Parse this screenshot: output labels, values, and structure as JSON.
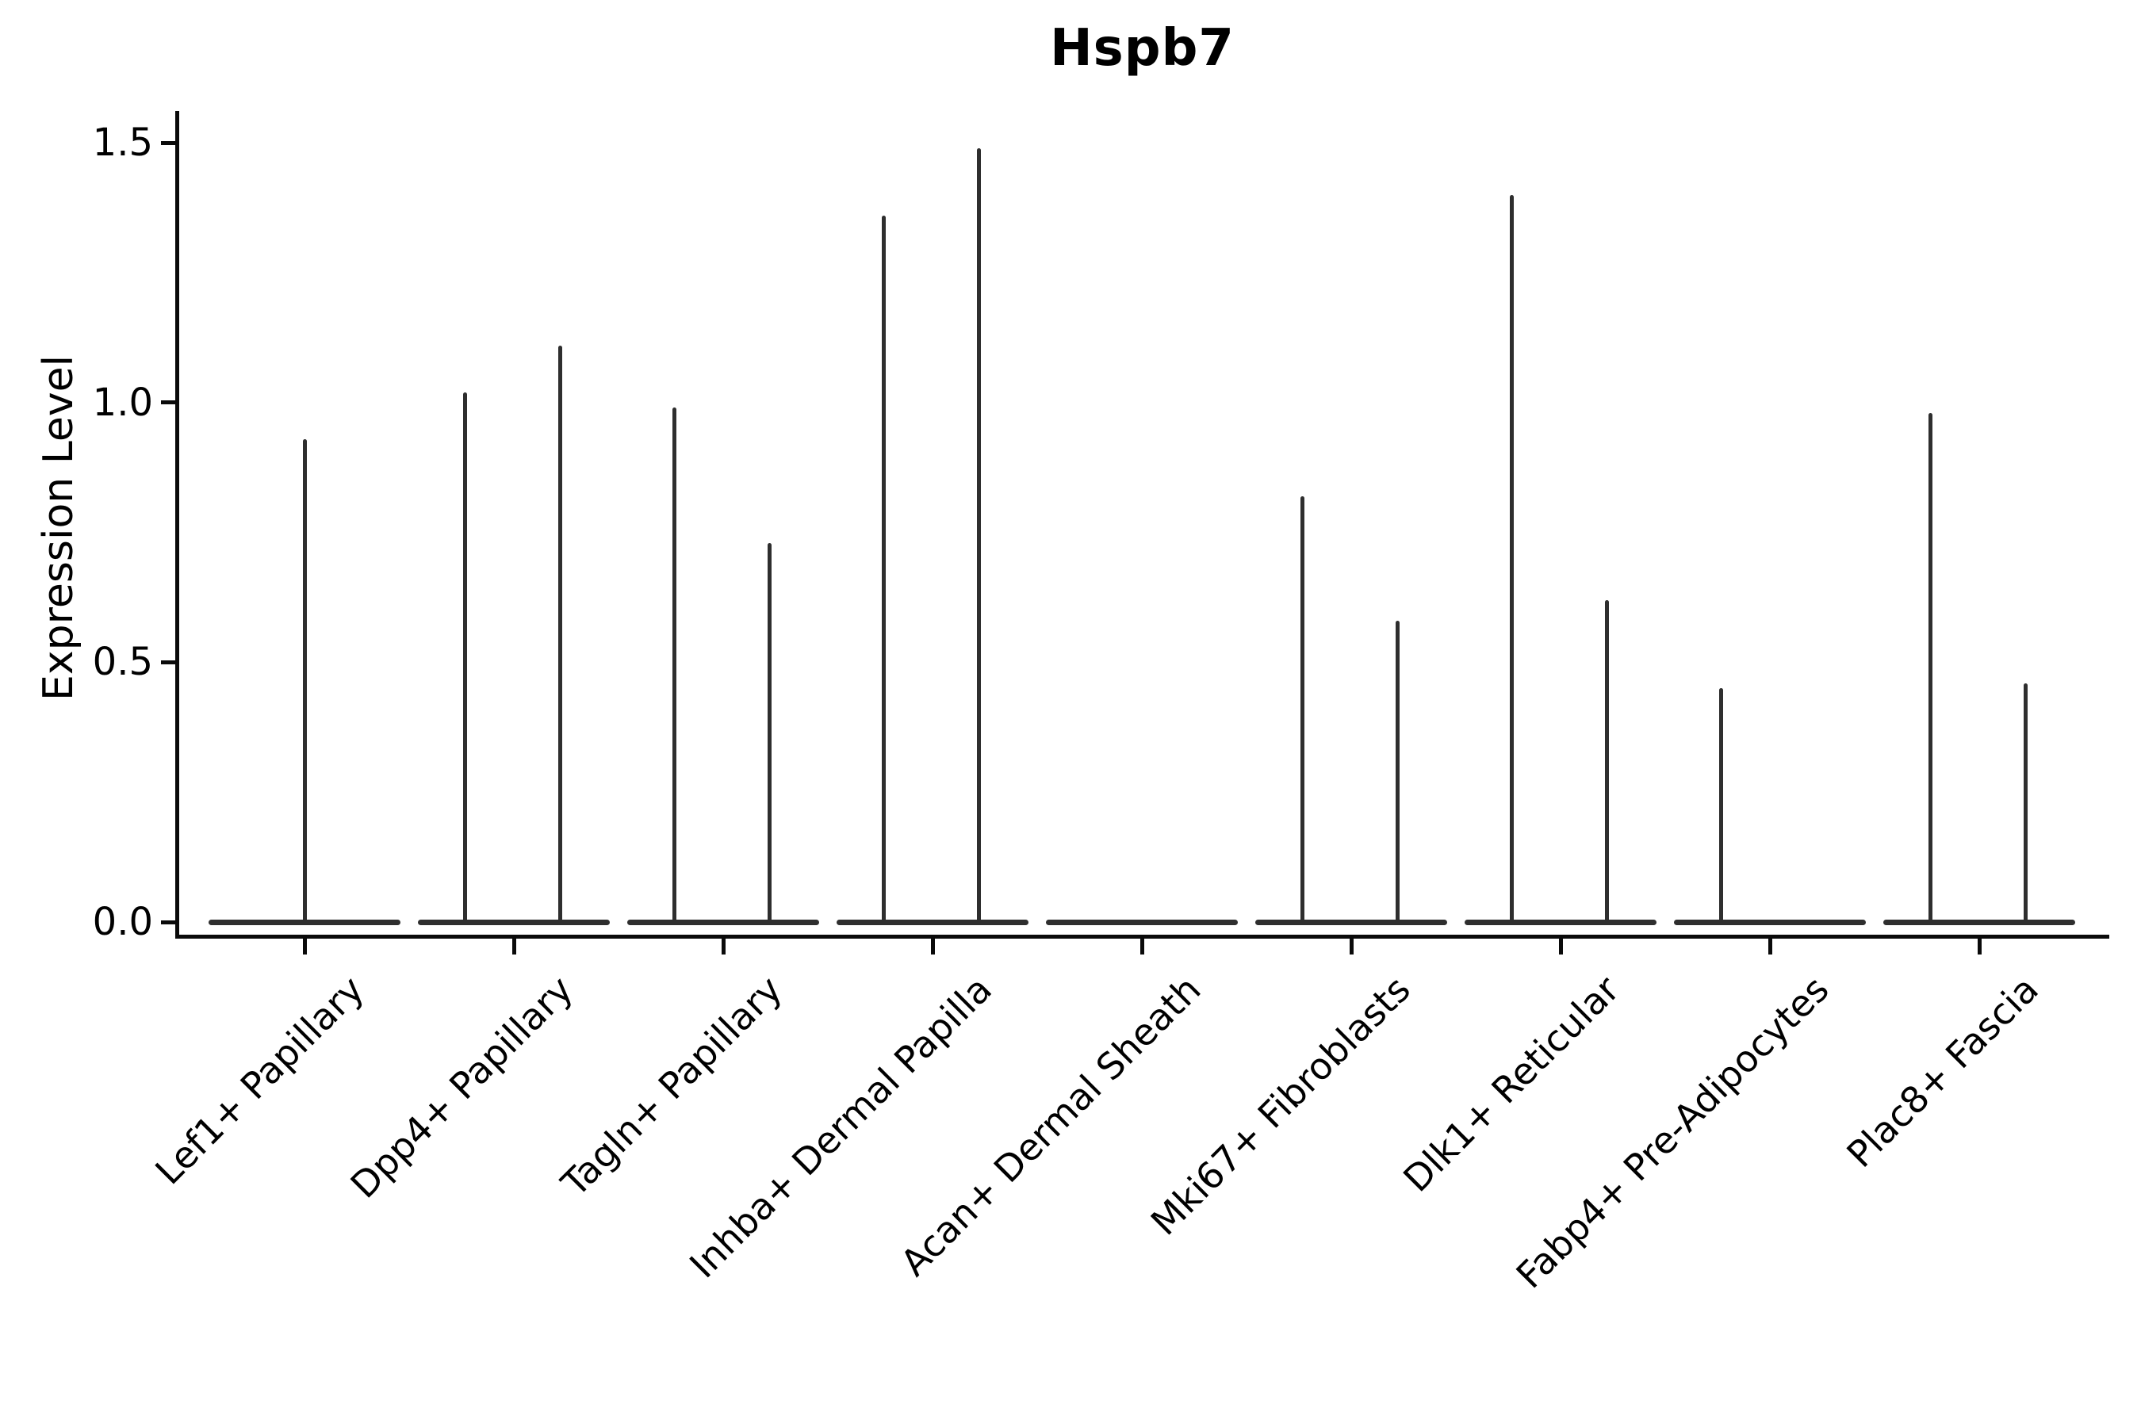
{
  "chart_data": {
    "type": "violin",
    "title": "Hspb7",
    "xlabel": "",
    "ylabel": "Expression Level",
    "ytick_labels": [
      "0.0",
      "0.5",
      "1.0",
      "1.5"
    ],
    "ytick_values": [
      0.0,
      0.5,
      1.0,
      1.5
    ],
    "ylim": [
      -0.03,
      1.56
    ],
    "grid": false,
    "legend": false,
    "categories": [
      "Lef1+ Papillary",
      "Dpp4+ Papillary",
      "Tagln+ Papillary",
      "Inhba+ Dermal Papilla",
      "Acan+ Dermal Sheath",
      "Mki67+ Fibroblasts",
      "Dlk1+ Reticular",
      "Fabp4+ Pre-Adipocytes",
      "Plac8+ Fascia"
    ],
    "violins": [
      {
        "category": "Lef1+ Papillary",
        "baseline_value": 0.0,
        "spikes": [
          {
            "position": "center",
            "max_value": 0.93
          }
        ]
      },
      {
        "category": "Dpp4+ Papillary",
        "baseline_value": 0.0,
        "spikes": [
          {
            "position": "left",
            "max_value": 1.02
          },
          {
            "position": "right",
            "max_value": 1.11
          }
        ]
      },
      {
        "category": "Tagln+ Papillary",
        "baseline_value": 0.0,
        "spikes": [
          {
            "position": "left",
            "max_value": 0.99
          },
          {
            "position": "right",
            "max_value": 0.73
          }
        ]
      },
      {
        "category": "Inhba+ Dermal Papilla",
        "baseline_value": 0.0,
        "spikes": [
          {
            "position": "left",
            "max_value": 1.36
          },
          {
            "position": "right",
            "max_value": 1.49
          }
        ]
      },
      {
        "category": "Acan+ Dermal Sheath",
        "baseline_value": 0.0,
        "spikes": []
      },
      {
        "category": "Mki67+ Fibroblasts",
        "baseline_value": 0.0,
        "spikes": [
          {
            "position": "left",
            "max_value": 0.82
          },
          {
            "position": "right",
            "max_value": 0.58
          }
        ]
      },
      {
        "category": "Dlk1+ Reticular",
        "baseline_value": 0.0,
        "spikes": [
          {
            "position": "left",
            "max_value": 1.4
          },
          {
            "position": "right",
            "max_value": 0.62
          }
        ]
      },
      {
        "category": "Fabp4+ Pre-Adipocytes",
        "baseline_value": 0.0,
        "spikes": [
          {
            "position": "left",
            "max_value": 0.45
          }
        ]
      },
      {
        "category": "Plac8+ Fascia",
        "baseline_value": 0.0,
        "spikes": [
          {
            "position": "left",
            "max_value": 0.98
          },
          {
            "position": "right",
            "max_value": 0.46
          }
        ]
      }
    ],
    "colors": {
      "violin_stroke": "#2e2e2e",
      "axis": "#0a0a0a",
      "text": "#000000",
      "background": "#ffffff"
    }
  }
}
